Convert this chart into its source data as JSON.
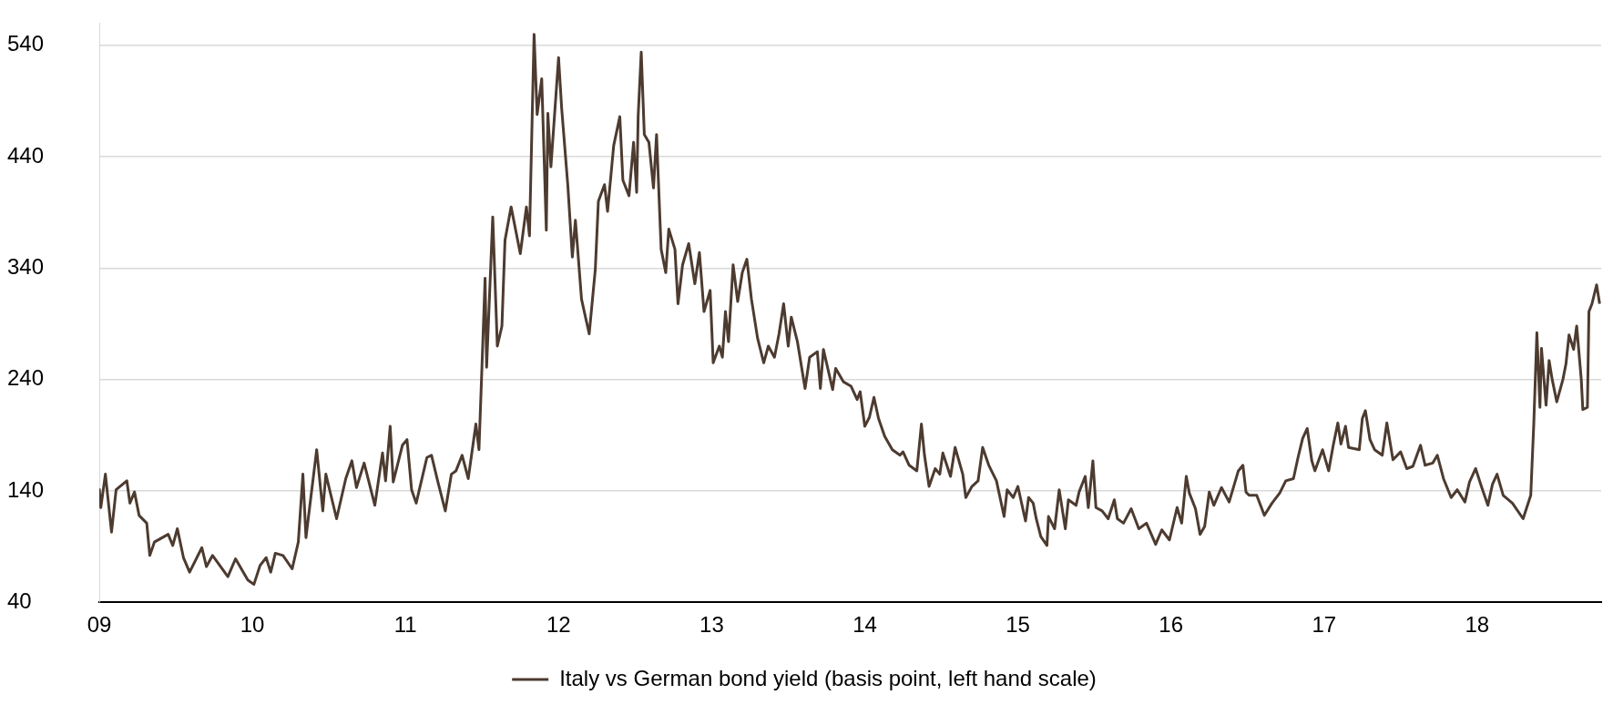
{
  "chart_data": {
    "type": "line",
    "legend": "bottom",
    "grid": "y",
    "marker": "none",
    "line_style": "solid",
    "xlim": [
      2009,
      2018.81
    ],
    "ylim": [
      40,
      560
    ],
    "xticks": [
      {
        "value": 2009,
        "label": "09"
      },
      {
        "value": 2010,
        "label": "10"
      },
      {
        "value": 2011,
        "label": "11"
      },
      {
        "value": 2012,
        "label": "12"
      },
      {
        "value": 2013,
        "label": "13"
      },
      {
        "value": 2014,
        "label": "14"
      },
      {
        "value": 2015,
        "label": "15"
      },
      {
        "value": 2016,
        "label": "16"
      },
      {
        "value": 2017,
        "label": "17"
      },
      {
        "value": 2018,
        "label": "18"
      }
    ],
    "yticks": [
      40,
      140,
      240,
      340,
      440,
      540
    ],
    "x": [
      2009.0,
      2009.01,
      2009.04,
      2009.08,
      2009.11,
      2009.18,
      2009.2,
      2009.23,
      2009.26,
      2009.31,
      2009.33,
      2009.36,
      2009.45,
      2009.48,
      2009.51,
      2009.55,
      2009.59,
      2009.67,
      2009.7,
      2009.74,
      2009.84,
      2009.89,
      2009.97,
      2010.01,
      2010.05,
      2010.09,
      2010.12,
      2010.15,
      2010.2,
      2010.26,
      2010.3,
      2010.33,
      2010.35,
      2010.38,
      2010.42,
      2010.46,
      2010.48,
      2010.55,
      2010.61,
      2010.65,
      2010.68,
      2010.73,
      2010.8,
      2010.85,
      2010.87,
      2010.9,
      2010.92,
      2010.98,
      2011.01,
      2011.04,
      2011.07,
      2011.14,
      2011.17,
      2011.21,
      2011.26,
      2011.3,
      2011.33,
      2011.37,
      2011.41,
      2011.46,
      2011.48,
      2011.5,
      2011.52,
      2011.53,
      2011.57,
      2011.6,
      2011.63,
      2011.65,
      2011.69,
      2011.75,
      2011.79,
      2011.81,
      2011.84,
      2011.86,
      2011.89,
      2011.92,
      2011.93,
      2011.95,
      2012.0,
      2012.02,
      2012.06,
      2012.09,
      2012.11,
      2012.15,
      2012.2,
      2012.24,
      2012.26,
      2012.3,
      2012.32,
      2012.36,
      2012.4,
      2012.42,
      2012.46,
      2012.49,
      2012.51,
      2012.52,
      2012.54,
      2012.56,
      2012.59,
      2012.62,
      2012.64,
      2012.67,
      2012.7,
      2012.72,
      2012.76,
      2012.78,
      2012.81,
      2012.85,
      2012.89,
      2012.92,
      2012.95,
      2012.99,
      2013.01,
      2013.05,
      2013.07,
      2013.09,
      2013.11,
      2013.14,
      2013.17,
      2013.2,
      2013.23,
      2013.26,
      2013.3,
      2013.34,
      2013.37,
      2013.41,
      2013.44,
      2013.47,
      2013.5,
      2013.52,
      2013.56,
      2013.61,
      2013.64,
      2013.69,
      2013.71,
      2013.73,
      2013.79,
      2013.81,
      2013.86,
      2013.91,
      2013.95,
      2013.97,
      2014.0,
      2014.03,
      2014.06,
      2014.09,
      2014.13,
      2014.18,
      2014.23,
      2014.25,
      2014.29,
      2014.34,
      2014.37,
      2014.39,
      2014.42,
      2014.46,
      2014.49,
      2014.51,
      2014.56,
      2014.59,
      2014.64,
      2014.66,
      2014.7,
      2014.74,
      2014.77,
      2014.81,
      2014.86,
      2014.91,
      2014.93,
      2014.97,
      2015.0,
      2015.05,
      2015.07,
      2015.1,
      2015.12,
      2015.15,
      2015.19,
      2015.2,
      2015.24,
      2015.27,
      2015.31,
      2015.33,
      2015.38,
      2015.4,
      2015.44,
      2015.46,
      2015.49,
      2015.51,
      2015.55,
      2015.59,
      2015.63,
      2015.65,
      2015.69,
      2015.74,
      2015.79,
      2015.84,
      2015.9,
      2015.94,
      2015.99,
      2016.04,
      2016.07,
      2016.1,
      2016.12,
      2016.16,
      2016.19,
      2016.22,
      2016.25,
      2016.28,
      2016.33,
      2016.38,
      2016.44,
      2016.47,
      2016.49,
      2016.51,
      2016.56,
      2016.61,
      2016.66,
      2016.71,
      2016.75,
      2016.8,
      2016.83,
      2016.86,
      2016.89,
      2016.92,
      2016.94,
      2016.99,
      2017.03,
      2017.06,
      2017.09,
      2017.11,
      2017.14,
      2017.16,
      2017.23,
      2017.25,
      2017.27,
      2017.3,
      2017.33,
      2017.38,
      2017.41,
      2017.45,
      2017.5,
      2017.54,
      2017.58,
      2017.63,
      2017.66,
      2017.71,
      2017.74,
      2017.78,
      2017.83,
      2017.87,
      2017.92,
      2017.95,
      2017.99,
      2018.03,
      2018.07,
      2018.1,
      2018.13,
      2018.17,
      2018.23,
      2018.3,
      2018.35,
      2018.37,
      2018.39,
      2018.41,
      2018.42,
      2018.45,
      2018.47,
      2018.49,
      2018.52,
      2018.56,
      2018.58,
      2018.6,
      2018.63,
      2018.65,
      2018.68,
      2018.69,
      2018.72,
      2018.73,
      2018.75,
      2018.78,
      2018.8
    ],
    "series": [
      {
        "name": "Italy vs German bond yield (basis point, left hand scale)",
        "color": "#4d3b30",
        "values": [
          142,
          125,
          155,
          103,
          141,
          149,
          129,
          139,
          118,
          111,
          82,
          94,
          101,
          91,
          106,
          80,
          67,
          89,
          72,
          82,
          63,
          79,
          60,
          56,
          73,
          80,
          67,
          84,
          82,
          70,
          94,
          155,
          98,
          132,
          177,
          122,
          155,
          115,
          151,
          167,
          143,
          165,
          127,
          174,
          149,
          198,
          148,
          181,
          186,
          141,
          129,
          170,
          172,
          149,
          122,
          155,
          158,
          172,
          151,
          200,
          177,
          253,
          331,
          251,
          386,
          270,
          288,
          365,
          395,
          353,
          395,
          369,
          550,
          478,
          510,
          374,
          479,
          431,
          529,
          484,
          415,
          350,
          383,
          312,
          281,
          339,
          400,
          415,
          391,
          450,
          476,
          419,
          405,
          453,
          408,
          477,
          534,
          460,
          453,
          412,
          460,
          357,
          336,
          375,
          357,
          308,
          343,
          362,
          326,
          354,
          301,
          320,
          255,
          270,
          260,
          301,
          274,
          343,
          310,
          336,
          348,
          312,
          277,
          255,
          270,
          260,
          281,
          308,
          270,
          296,
          274,
          232,
          260,
          265,
          232,
          267,
          231,
          250,
          238,
          234,
          222,
          229,
          198,
          206,
          224,
          205,
          189,
          177,
          172,
          175,
          163,
          158,
          200,
          172,
          144,
          160,
          155,
          174,
          153,
          179,
          155,
          134,
          144,
          149,
          179,
          163,
          149,
          117,
          141,
          134,
          144,
          113,
          134,
          129,
          115,
          99,
          91,
          117,
          106,
          141,
          106,
          132,
          127,
          139,
          153,
          125,
          167,
          125,
          122,
          115,
          132,
          115,
          111,
          124,
          106,
          111,
          92,
          105,
          96,
          125,
          111,
          153,
          138,
          124,
          101,
          108,
          139,
          127,
          143,
          130,
          158,
          163,
          139,
          136,
          136,
          118,
          129,
          138,
          149,
          151,
          170,
          187,
          196,
          167,
          158,
          177,
          158,
          181,
          201,
          182,
          198,
          179,
          177,
          205,
          212,
          186,
          177,
          172,
          201,
          168,
          175,
          160,
          162,
          181,
          163,
          165,
          172,
          151,
          134,
          141,
          130,
          148,
          160,
          143,
          127,
          146,
          155,
          136,
          129,
          115,
          136,
          201,
          282,
          215,
          268,
          217,
          257,
          240,
          220,
          240,
          254,
          280,
          267,
          288,
          240,
          213,
          215,
          301,
          308,
          325,
          308
        ]
      }
    ]
  }
}
